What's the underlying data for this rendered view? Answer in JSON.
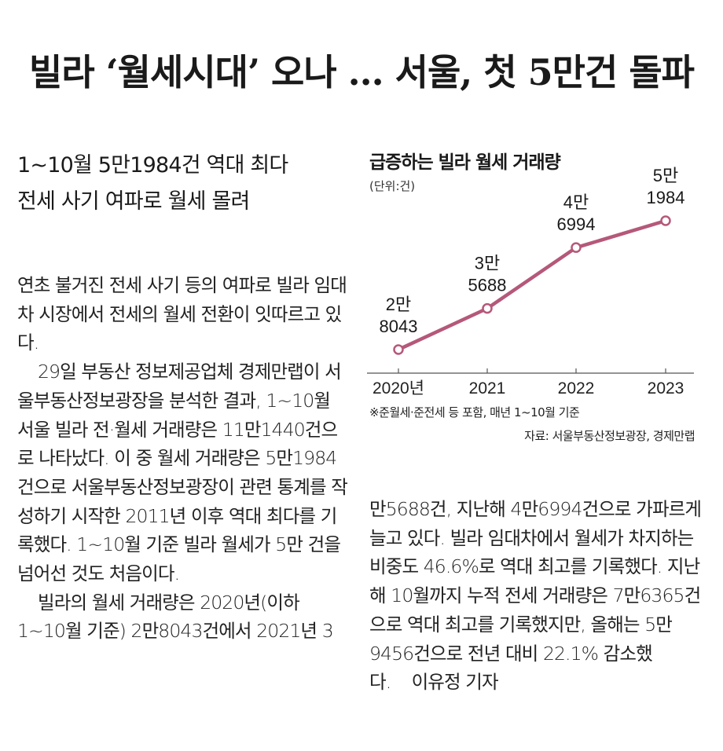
{
  "headline": "빌라 ‘월세시대’ 오나 … 서울, 첫 5만건 돌파",
  "subheads": [
    "1~10월 5만1984건 역대 최다",
    "전세 사기 여파로 월세 몰려"
  ],
  "left_column": [
    "연초 불거진 전세 사기 등의 여파로 빌라 임대차 시장에서 전세의 월세 전환이 잇따르고 있다.",
    "29일 부동산 정보제공업체 경제만랩이 서울부동산정보광장을 분석한 결과, 1~10월 서울 빌라 전·월세 거래량은 11만1440건으로 나타났다. 이 중 월세 거래량은 5만1984건으로 서울부동산정보광장이 관련 통계를 작성하기 시작한 2011년 이후 역대 최다를 기록했다. 1~10월 기준 빌라 월세가 5만 건을 넘어선 것도 처음이다.",
    "빌라의 월세 거래량은 2020년(이하 1~10월 기준) 2만8043건에서 2021년 3"
  ],
  "right_column": "만5688건, 지난해 4만6994건으로 가파르게 늘고 있다. 빌라 임대차에서 월세가 차지하는 비중도 46.6%로 역대 최고를 기록했다. 지난해 10월까지 누적 전세 거래량은 7만6365건으로 역대 최고를 기록했지만, 올해는 5만9456건으로 전년 대비 22.1% 감소했다.",
  "byline": "이유정 기자",
  "chart_data": {
    "type": "line",
    "title": "급증하는 빌라 월세 거래량",
    "unit": "(단위:건)",
    "categories": [
      "2020년",
      "2021",
      "2022",
      "2023"
    ],
    "values": [
      28043,
      35688,
      46994,
      51984
    ],
    "labels": [
      [
        "2만",
        "8043"
      ],
      [
        "3만",
        "5688"
      ],
      [
        "4만",
        "6994"
      ],
      [
        "5만",
        "1984"
      ]
    ],
    "note": "※준월세·준전세 등 포함, 매년 1~10월 기준",
    "source": "자료: 서울부동산정보광장, 경제만랩",
    "line_color": "#b5587a"
  }
}
